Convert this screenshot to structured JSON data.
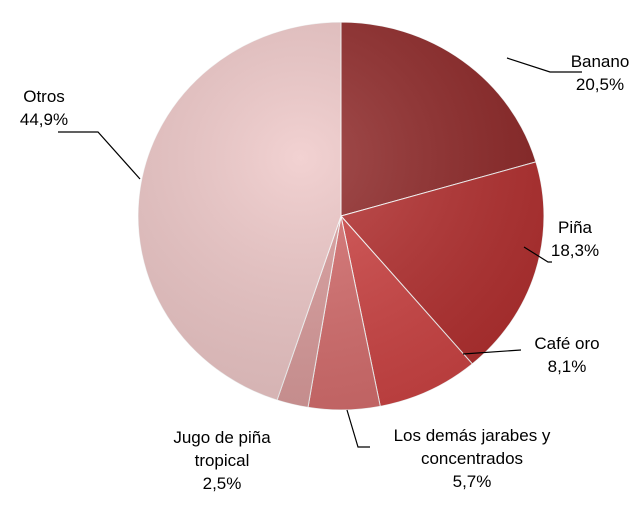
{
  "chart_data": {
    "type": "pie",
    "categories": [
      "Banano",
      "Piña",
      "Café oro",
      "Los demás jarabes y concentrados",
      "Jugo de piña tropical",
      "Otros"
    ],
    "values": [
      20.5,
      18.3,
      8.1,
      5.7,
      2.5,
      44.9
    ],
    "value_labels": [
      "20,5%",
      "18,3%",
      "8,1%",
      "5,7%",
      "2,5%",
      "44,9%"
    ],
    "colors": [
      "#8f2727",
      "#b52f2f",
      "#cf4343",
      "#d76d6d",
      "#dc9c9c",
      "#efc8c8"
    ]
  }
}
